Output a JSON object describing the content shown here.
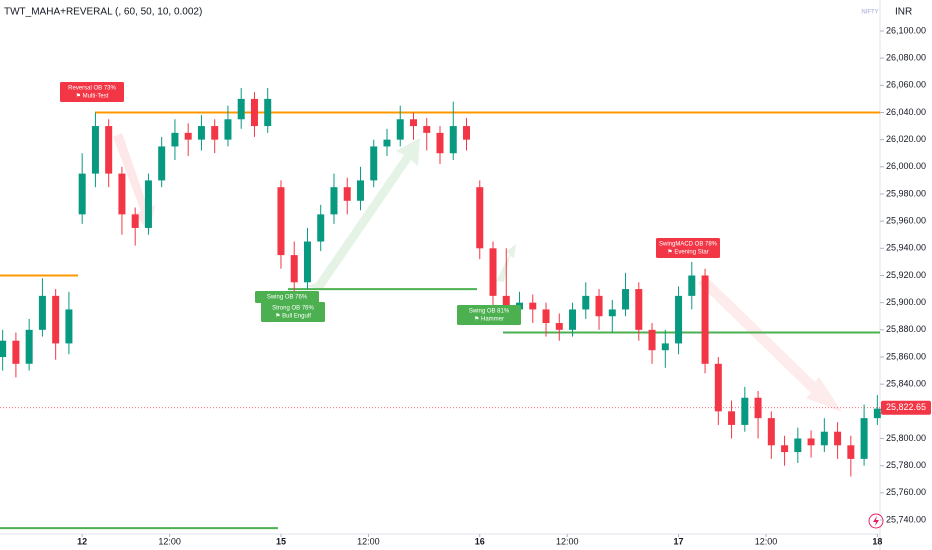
{
  "header": {
    "indicator": "TWT_MAHA+REVERAL (, 60, 50, 10, 0.002)",
    "symbol": "NIFTY",
    "currency": "INR"
  },
  "chart_data": {
    "type": "candlestick",
    "up_color": "#089981",
    "down_color": "#f23645",
    "x": [
      -6,
      -5,
      -4,
      -3,
      -2,
      -1,
      0,
      1,
      2,
      3,
      4,
      5,
      6,
      7,
      8,
      9,
      10,
      11,
      12,
      13,
      14,
      15,
      16,
      17,
      18,
      19,
      20,
      21,
      22,
      23,
      24,
      25,
      26,
      27,
      28,
      29,
      30,
      31,
      32,
      33,
      34,
      35,
      36,
      37,
      38,
      39,
      40,
      41,
      42,
      43,
      44,
      45,
      46,
      47,
      48,
      49,
      50,
      51,
      52,
      53,
      54,
      55,
      56,
      57,
      58,
      59,
      60
    ],
    "open": [
      25860,
      25872,
      25855,
      25880,
      25905,
      25870,
      25965,
      25995,
      26030,
      25995,
      25965,
      25955,
      25990,
      26015,
      26025,
      26020,
      26030,
      26020,
      26035,
      26050,
      26030,
      25985,
      25935,
      25915,
      25945,
      25965,
      25985,
      25975,
      25990,
      26015,
      26020,
      26035,
      26030,
      26025,
      26010,
      26030,
      25985,
      25940,
      25905,
      25895,
      25900,
      25895,
      25885,
      25880,
      25895,
      25905,
      25890,
      25895,
      25910,
      25880,
      25865,
      25870,
      25905,
      25920,
      25855,
      25820,
      25810,
      25830,
      25815,
      25795,
      25790,
      25800,
      25795,
      25805,
      25795,
      25785,
      25815
    ],
    "high": [
      25880,
      25878,
      25888,
      25918,
      25910,
      25908,
      26010,
      26040,
      26035,
      26000,
      25970,
      25995,
      26022,
      26035,
      26032,
      26038,
      26035,
      26045,
      26058,
      26055,
      26058,
      25990,
      25945,
      25955,
      25972,
      25995,
      25992,
      26000,
      26020,
      26028,
      26045,
      26040,
      26036,
      26030,
      26048,
      26036,
      25990,
      25945,
      25940,
      25908,
      25906,
      25900,
      25892,
      25900,
      25915,
      25910,
      25902,
      25922,
      25915,
      25885,
      25880,
      25912,
      25930,
      25925,
      25860,
      25828,
      25838,
      25835,
      25820,
      25802,
      25808,
      25806,
      25815,
      25812,
      25802,
      25825,
      25832
    ],
    "low": [
      25850,
      25845,
      25850,
      25875,
      25858,
      25862,
      25958,
      25985,
      25985,
      25950,
      25942,
      25950,
      25985,
      26005,
      26008,
      26012,
      26010,
      26015,
      26028,
      26022,
      26025,
      25925,
      25905,
      25910,
      25938,
      25958,
      25965,
      25968,
      25985,
      26008,
      26015,
      26020,
      26012,
      26002,
      26005,
      26012,
      25932,
      25895,
      25888,
      25888,
      25885,
      25875,
      25872,
      25875,
      25888,
      25880,
      25878,
      25890,
      25872,
      25855,
      25852,
      25862,
      25895,
      25848,
      25810,
      25800,
      25805,
      25800,
      25785,
      25780,
      25782,
      25786,
      25790,
      25785,
      25772,
      25780,
      25810
    ],
    "close": [
      25872,
      25855,
      25880,
      25905,
      25870,
      25895,
      25995,
      26030,
      25995,
      25965,
      25955,
      25990,
      26015,
      26025,
      26020,
      26030,
      26020,
      26035,
      26050,
      26030,
      26050,
      25935,
      25915,
      25945,
      25965,
      25985,
      25975,
      25990,
      26015,
      26020,
      26035,
      26030,
      26025,
      26010,
      26030,
      26020,
      25940,
      25905,
      25895,
      25900,
      25895,
      25885,
      25880,
      25895,
      25905,
      25890,
      25895,
      25910,
      25880,
      25865,
      25870,
      25905,
      25920,
      25855,
      25820,
      25810,
      25830,
      25815,
      25795,
      25790,
      25800,
      25795,
      25805,
      25795,
      25785,
      25815,
      25822
    ],
    "xlim": [
      -6.2,
      60.2
    ],
    "xticks": [
      {
        "value": 0,
        "label": "12"
      },
      {
        "value": 6.6,
        "label": "12:00"
      },
      {
        "value": 15,
        "label": "15"
      },
      {
        "value": 21.6,
        "label": "12:00"
      },
      {
        "value": 30,
        "label": "16"
      },
      {
        "value": 36.6,
        "label": "12:00"
      },
      {
        "value": 45,
        "label": "17"
      },
      {
        "value": 51.6,
        "label": "12:00"
      },
      {
        "value": 60,
        "label": "18"
      }
    ],
    "ylim": [
      25729.7,
      26122.8
    ],
    "yticks": [
      {
        "value": 26100,
        "label": "26,100.00"
      },
      {
        "value": 26080,
        "label": "26,080.00"
      },
      {
        "value": 26060,
        "label": "26,060.00"
      },
      {
        "value": 26040,
        "label": "26,040.00"
      },
      {
        "value": 26020,
        "label": "26,020.00"
      },
      {
        "value": 26000,
        "label": "26,000.00"
      },
      {
        "value": 25980,
        "label": "25,980.00"
      },
      {
        "value": 25960,
        "label": "25,960.00"
      },
      {
        "value": 25940,
        "label": "25,940.00"
      },
      {
        "value": 25920,
        "label": "25,920.00"
      },
      {
        "value": 25900,
        "label": "25,900.00"
      },
      {
        "value": 25880,
        "label": "25,880.00"
      },
      {
        "value": 25860,
        "label": "25,860.00"
      },
      {
        "value": 25840,
        "label": "25,840.00"
      },
      {
        "value": 25820,
        "label": "25,820.00"
      },
      {
        "value": 25800,
        "label": "25,800.00"
      },
      {
        "value": 25780,
        "label": "25,780.00"
      },
      {
        "value": 25760,
        "label": "25,760.00"
      },
      {
        "value": 25740,
        "label": "25,740.00"
      }
    ],
    "levels": [
      {
        "value": 26040,
        "color": "#ff9800"
      },
      {
        "value": 25920,
        "color": "#ff9800"
      },
      {
        "value": 25910,
        "color": "#4caf50"
      },
      {
        "value": 25878,
        "color": "#4caf50"
      },
      {
        "value": 25734,
        "color": "#4caf50"
      }
    ],
    "last_price": {
      "value": 25822.65,
      "label": "25,822.65",
      "color": "#f23645"
    },
    "annotations": [
      {
        "lines": [
          "Reversal OB 73%",
          "⚑ Multi-Test"
        ],
        "color": "#f23645"
      },
      {
        "lines": [
          "Swing OB 76%"
        ],
        "color": "#4caf50"
      },
      {
        "lines": [
          "Strong OB 76%",
          "⚑ Bull Engulf"
        ],
        "color": "#4caf50"
      },
      {
        "lines": [
          "Swing OB 81%",
          "⚑ Hammer"
        ],
        "color": "#4caf50"
      },
      {
        "lines": [
          "SwingMACD OB 78%",
          "⚑ Evening Star"
        ],
        "color": "#f23645"
      }
    ]
  }
}
